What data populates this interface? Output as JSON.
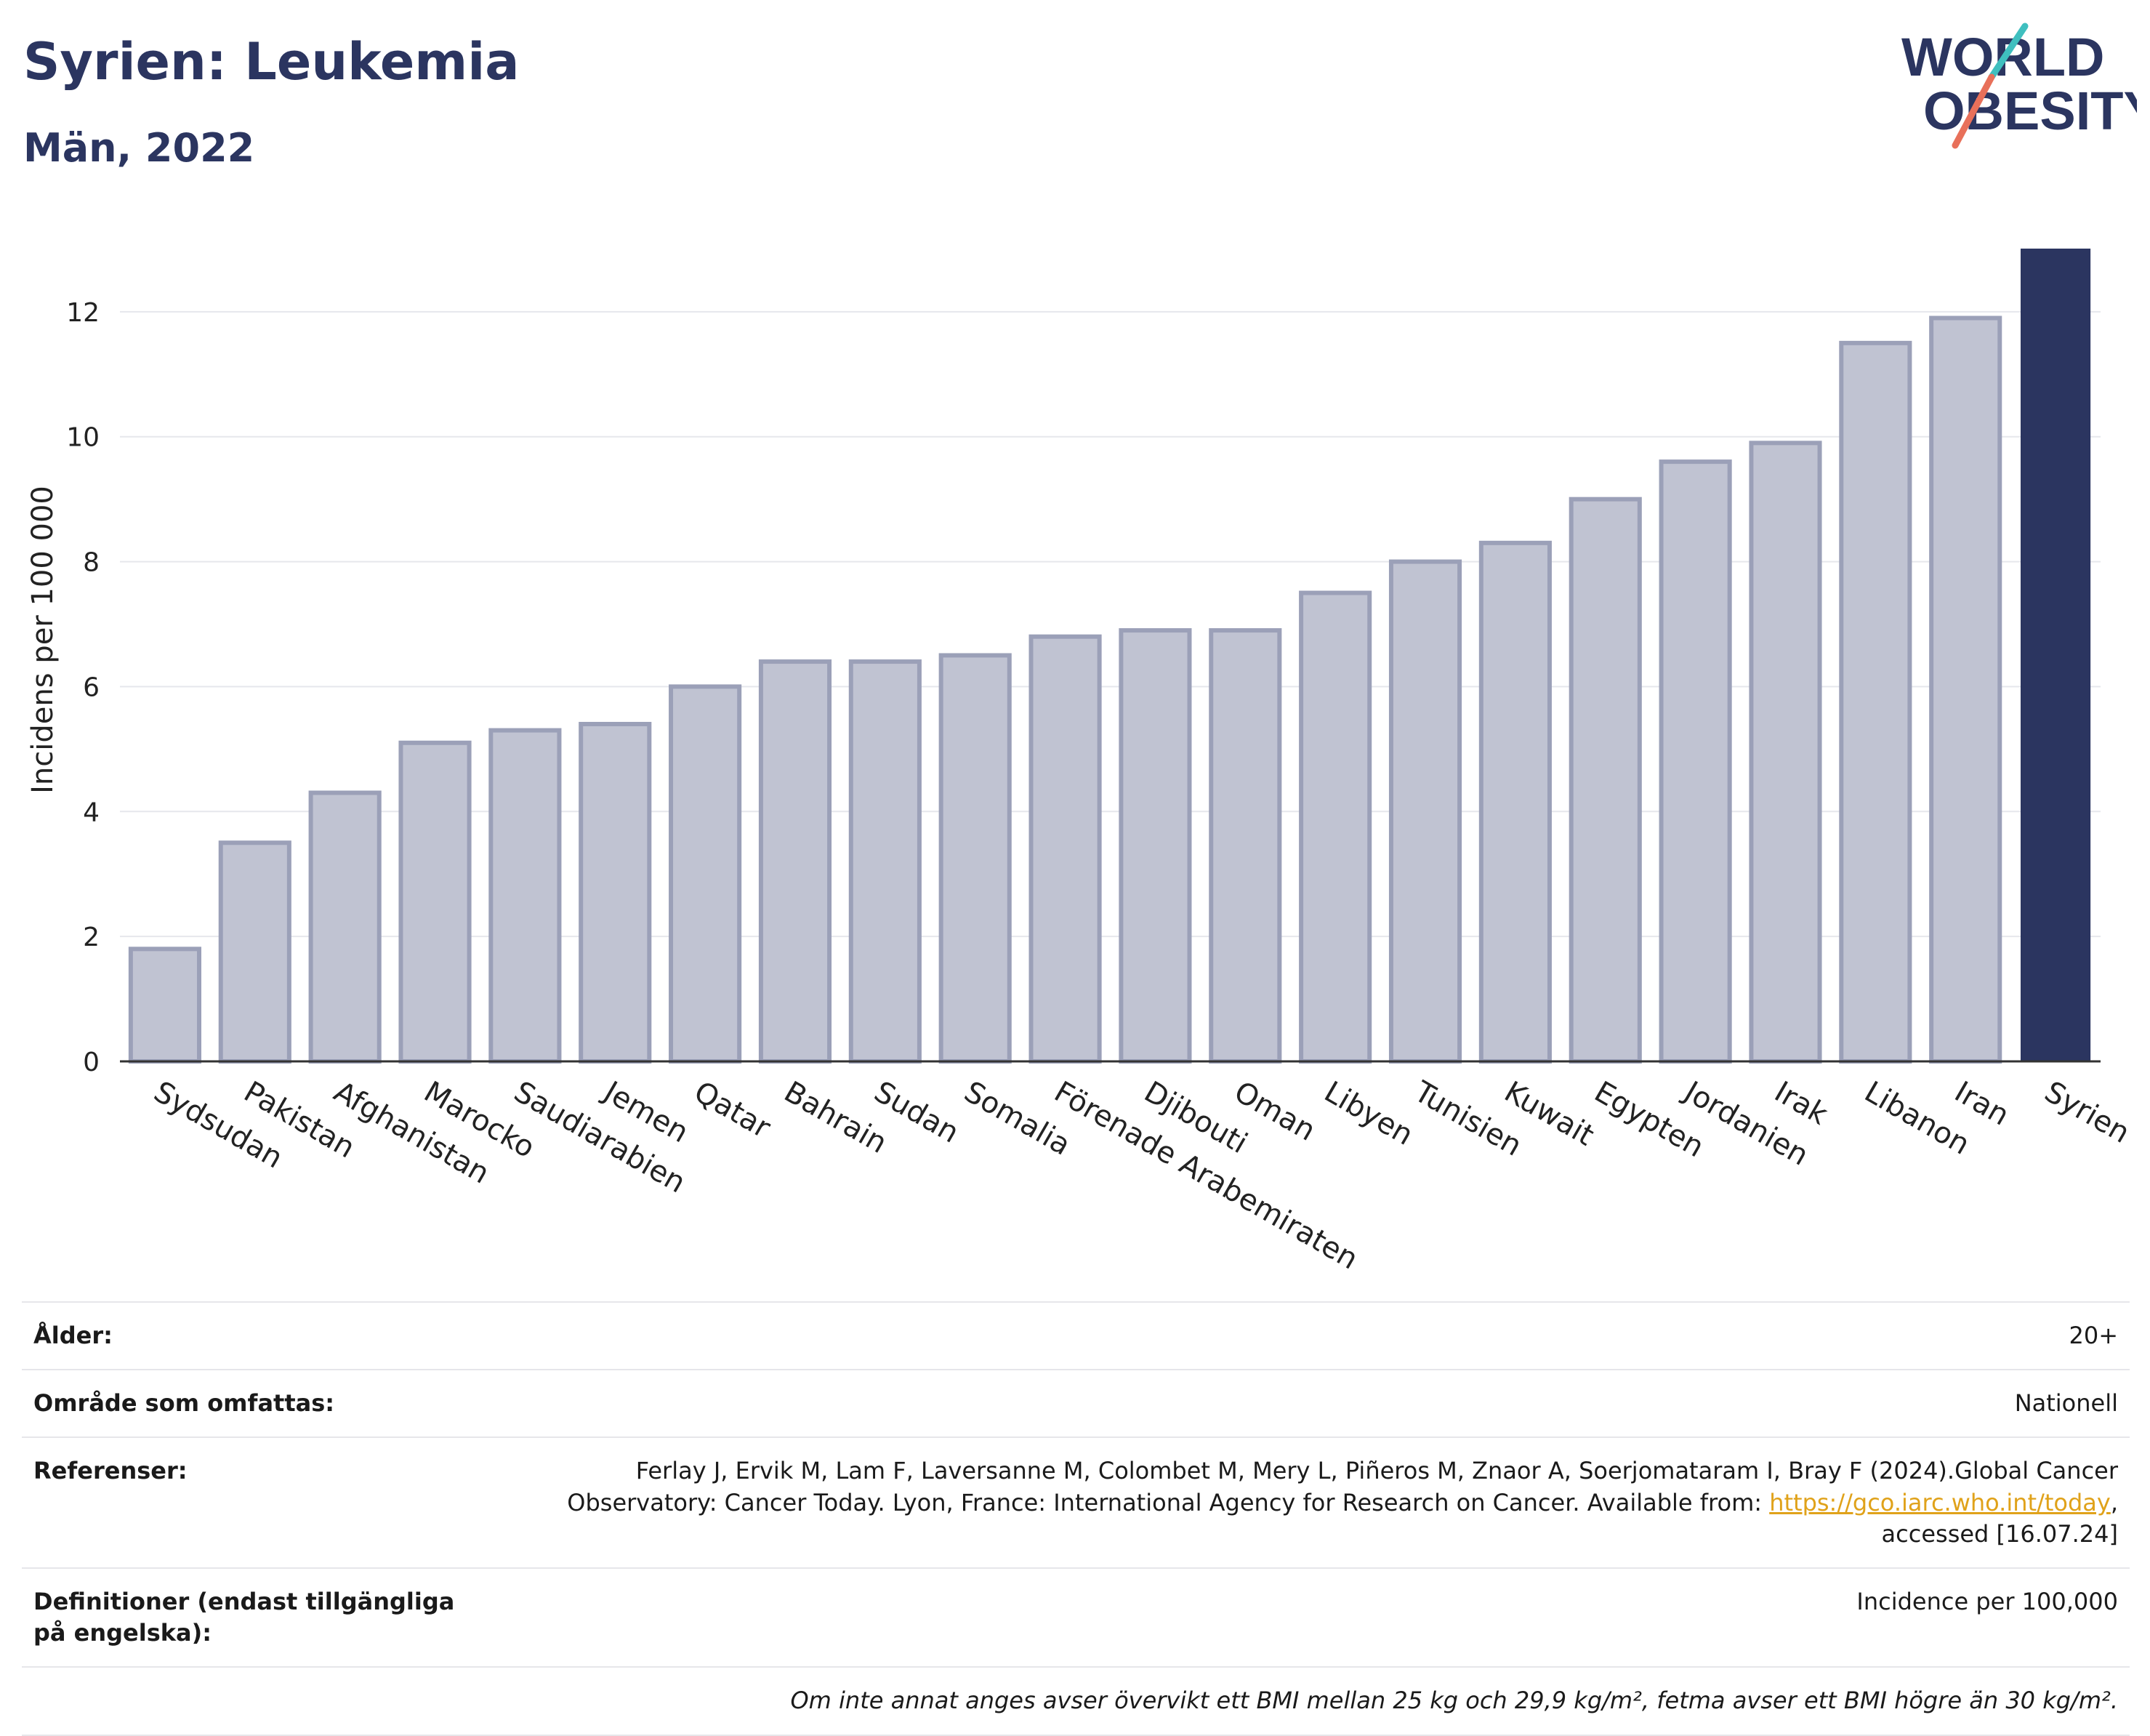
{
  "header": {
    "title": "Syrien: Leukemia",
    "subtitle": "Män, 2022"
  },
  "logo": {
    "line1": "WORLD",
    "line2": "OBESITY",
    "colors": {
      "text": "#2b3560",
      "slash_teal": "#3fbfbf",
      "slash_coral": "#e8705a"
    }
  },
  "chart_data": {
    "type": "bar",
    "categories": [
      "Sydsudan",
      "Pakistan",
      "Afghanistan",
      "Marocko",
      "Saudiarabien",
      "Jemen",
      "Qatar",
      "Bahrain",
      "Sudan",
      "Somalia",
      "Förenade Arabemiraten",
      "Djibouti",
      "Oman",
      "Libyen",
      "Tunisien",
      "Kuwait",
      "Egypten",
      "Jordanien",
      "Irak",
      "Libanon",
      "Iran",
      "Syrien"
    ],
    "values": [
      1.8,
      3.5,
      4.3,
      5.1,
      5.3,
      5.4,
      6.0,
      6.4,
      6.4,
      6.5,
      6.8,
      6.9,
      6.9,
      7.5,
      8.0,
      8.3,
      9.0,
      9.6,
      9.9,
      11.5,
      11.9,
      13.0
    ],
    "highlight": "Syrien",
    "ylabel": "Incidens per 100 000",
    "xlabel": "",
    "ylim": [
      0,
      13.5
    ],
    "yticks": [
      0,
      2,
      4,
      6,
      8,
      10,
      12
    ],
    "grid": true,
    "colors": {
      "bar": "#c0c3d2",
      "bar_edge": "#9ba0b8",
      "highlight": "#2b3560",
      "grid": "#e6e7ec",
      "axis": "#333333"
    }
  },
  "info": {
    "rows": [
      {
        "key": "Ålder:",
        "value": "20+"
      },
      {
        "key": "Område som omfattas:",
        "value": "Nationell"
      },
      {
        "key": "Referenser:",
        "value_pre": "Ferlay J, Ervik M, Lam F, Laversanne M, Colombet M, Mery L, Piñeros M, Znaor A, Soerjomataram I, Bray F (2024).Global Cancer Observatory: Cancer Today. Lyon, France: International Agency for Research on Cancer. Available from: ",
        "link": "https://gco.iarc.who.int/today",
        "value_post": ", accessed [16.07.24]"
      },
      {
        "key": "Definitioner (endast tillgängliga på engelska):",
        "value": "Incidence per 100,000"
      }
    ],
    "note": "Om inte annat anges avser övervikt ett BMI mellan 25 kg och 29,9 kg/m², fetma avser ett BMI högre än 30 kg/m²."
  }
}
